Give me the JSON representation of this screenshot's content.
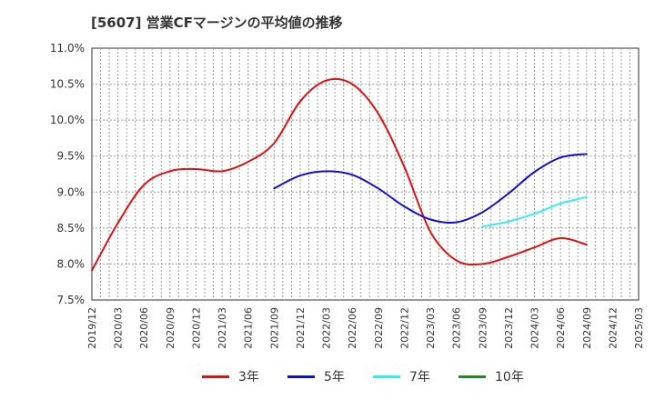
{
  "title": "[5607]  営業CFマージンの平均値の推移",
  "chart_data": {
    "type": "line",
    "title": "[5607]  営業CFマージンの平均値の推移",
    "xlabel": "",
    "ylabel": "",
    "x_ticks": [
      "2019/12",
      "2020/03",
      "2020/06",
      "2020/09",
      "2020/12",
      "2021/03",
      "2021/06",
      "2021/09",
      "2021/12",
      "2022/03",
      "2022/06",
      "2022/09",
      "2022/12",
      "2023/03",
      "2023/06",
      "2023/09",
      "2023/12",
      "2024/03",
      "2024/06",
      "2024/09",
      "2024/12",
      "2025/03"
    ],
    "y_ticks": [
      "7.5%",
      "8.0%",
      "8.5%",
      "9.0%",
      "9.5%",
      "10.0%",
      "10.5%",
      "11.0%"
    ],
    "ylim": [
      7.5,
      11.0
    ],
    "grid": true,
    "legend_position": "bottom",
    "series": [
      {
        "name": "3年",
        "color": "#dd1111",
        "points": [
          [
            "2019/12",
            7.91
          ],
          [
            "2020/03",
            8.57
          ],
          [
            "2020/06",
            9.1
          ],
          [
            "2020/09",
            9.29
          ],
          [
            "2020/12",
            9.32
          ],
          [
            "2021/03",
            9.29
          ],
          [
            "2021/06",
            9.42
          ],
          [
            "2021/09",
            9.68
          ],
          [
            "2021/12",
            10.26
          ],
          [
            "2022/03",
            10.55
          ],
          [
            "2022/06",
            10.5
          ],
          [
            "2022/09",
            10.09
          ],
          [
            "2022/12",
            9.35
          ],
          [
            "2023/03",
            8.45
          ],
          [
            "2023/06",
            8.05
          ],
          [
            "2023/09",
            8.0
          ],
          [
            "2023/12",
            8.1
          ],
          [
            "2024/03",
            8.23
          ],
          [
            "2024/06",
            8.36
          ],
          [
            "2024/09",
            8.27
          ]
        ]
      },
      {
        "name": "5年",
        "color": "#1111cc",
        "points": [
          [
            "2021/09",
            9.05
          ],
          [
            "2021/12",
            9.23
          ],
          [
            "2022/03",
            9.29
          ],
          [
            "2022/06",
            9.24
          ],
          [
            "2022/09",
            9.05
          ],
          [
            "2022/12",
            8.8
          ],
          [
            "2023/03",
            8.62
          ],
          [
            "2023/06",
            8.58
          ],
          [
            "2023/09",
            8.72
          ],
          [
            "2023/12",
            8.98
          ],
          [
            "2024/03",
            9.28
          ],
          [
            "2024/06",
            9.48
          ],
          [
            "2024/09",
            9.53
          ]
        ]
      },
      {
        "name": "7年",
        "color": "#33eeee",
        "points": [
          [
            "2023/09",
            8.52
          ],
          [
            "2023/12",
            8.59
          ],
          [
            "2024/03",
            8.7
          ],
          [
            "2024/06",
            8.84
          ],
          [
            "2024/09",
            8.93
          ]
        ]
      },
      {
        "name": "10年",
        "color": "#228822",
        "points": []
      }
    ]
  }
}
